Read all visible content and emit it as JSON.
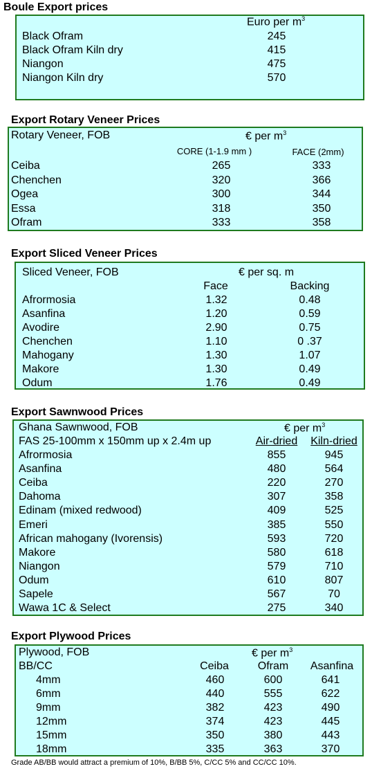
{
  "boule": {
    "title": "Boule Export prices",
    "unit": "Euro per m",
    "unit_sup": "3",
    "rows": [
      {
        "name": "Black Ofram",
        "price": "245"
      },
      {
        "name": "Black Ofram  Kiln dry",
        "price": "415"
      },
      {
        "name": "Niangon",
        "price": "475"
      },
      {
        "name": "Niangon Kiln dry",
        "price": "570"
      }
    ]
  },
  "rotary": {
    "title": "Export Rotary Veneer Prices",
    "header": "Rotary Veneer,  FOB",
    "unit": "€  per m",
    "unit_sup": "3",
    "col1": "CORE (1-1.9 mm )",
    "col2": "FACE (2mm)",
    "rows": [
      {
        "name": "Ceiba",
        "core": "265",
        "face": "333"
      },
      {
        "name": "Chenchen",
        "core": "320",
        "face": "366"
      },
      {
        "name": "Ogea",
        "core": "300",
        "face": "344"
      },
      {
        "name": "Essa",
        "core": "318",
        "face": "350"
      },
      {
        "name": "Ofram",
        "core": "333",
        "face": "358"
      }
    ]
  },
  "sliced": {
    "title": "Export Sliced Veneer Prices",
    "header": "Sliced Veneer, FOB",
    "unit": "€ per sq. m",
    "col1": "Face",
    "col2": "Backing",
    "rows": [
      {
        "name": "Afrormosia",
        "face": "1.32",
        "backing": "0.48"
      },
      {
        "name": "Asanfina",
        "face": "1.20",
        "backing": "0.59"
      },
      {
        "name": "Avodire",
        "face": "2.90",
        "backing": "0.75"
      },
      {
        "name": "Chenchen",
        "face": "1.10",
        "backing": "0 .37"
      },
      {
        "name": "Mahogany",
        "face": "1.30",
        "backing": "1.07"
      },
      {
        "name": "Makore",
        "face": "1.30",
        "backing": "0.49"
      },
      {
        "name": "Odum",
        "face": "1.76",
        "backing": "0.49"
      }
    ]
  },
  "sawn": {
    "title": "Export Sawnwood Prices",
    "header": "Ghana Sawnwood, FOB",
    "unit": "€ per m",
    "unit_sup": "3",
    "spec": "FAS 25-100mm x 150mm up x 2.4m up",
    "col1": "Air-dried",
    "col2": "Kiln-dried",
    "rows": [
      {
        "name": "Afrormosia",
        "air": "855",
        "kiln": "945"
      },
      {
        "name": "Asanfina",
        "air": "480",
        "kiln": "564"
      },
      {
        "name": "Ceiba",
        "air": "220",
        "kiln": "270"
      },
      {
        "name": "Dahoma",
        "air": "307",
        "kiln": "358"
      },
      {
        "name": "Edinam (mixed redwood)",
        "air": "409",
        "kiln": "525"
      },
      {
        "name": "Emeri",
        "air": "385",
        "kiln": "550"
      },
      {
        "name": "African mahogany (Ivorensis)",
        "air": "593",
        "kiln": "720"
      },
      {
        "name": "Makore",
        "air": "580",
        "kiln": "618"
      },
      {
        "name": "Niangon",
        "air": "579",
        "kiln": "710"
      },
      {
        "name": "Odum",
        "air": "610",
        "kiln": "807"
      },
      {
        "name": "Sapele",
        "air": "567",
        "kiln": "70"
      },
      {
        "name": "Wawa 1C & Select",
        "air": "275",
        "kiln": "340"
      }
    ]
  },
  "plywood": {
    "title": "Export Plywood Prices",
    "header": "Plywood, FOB",
    "unit": "€ per m",
    "unit_sup": "3",
    "grade": "BB/CC",
    "col1": "Ceiba",
    "col2": "Ofram",
    "col3": "Asanfina",
    "rows": [
      {
        "name": "4mm",
        "ceiba": "460",
        "ofram": "600",
        "asanfina": "641"
      },
      {
        "name": "6mm",
        "ceiba": "440",
        "ofram": "555",
        "asanfina": "622"
      },
      {
        "name": "9mm",
        "ceiba": "382",
        "ofram": "423",
        "asanfina": "490"
      },
      {
        "name": "12mm",
        "ceiba": "374",
        "ofram": "423",
        "asanfina": "445"
      },
      {
        "name": "15mm",
        "ceiba": "350",
        "ofram": "380",
        "asanfina": "443"
      },
      {
        "name": "18mm",
        "ceiba": "335",
        "ofram": "363",
        "asanfina": "370"
      }
    ],
    "note": "Grade AB/BB would attract a premium of 10%, B/BB 5%, C/CC 5% and CC/CC 10%."
  }
}
